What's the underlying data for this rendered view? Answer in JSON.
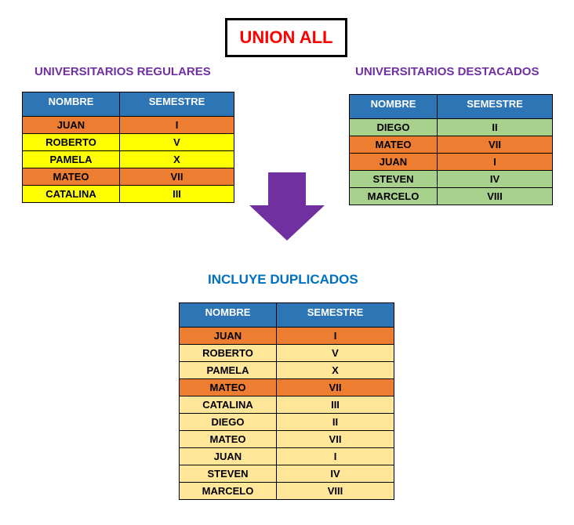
{
  "title": "UNION ALL",
  "colors": {
    "header": "#2e75b6",
    "orange": "#ed7d31",
    "yellow": "#ffff00",
    "green": "#a9d18e",
    "light_orange": "#ffe699",
    "purple": "#7030a0",
    "blue_text": "#0070c0",
    "title_red": "#ff0000"
  },
  "left_table": {
    "heading": "UNIVERSITARIOS REGULARES",
    "columns": [
      "NOMBRE",
      "SEMESTRE"
    ],
    "rows": [
      {
        "nombre": "JUAN",
        "semestre": "I",
        "color": "orange"
      },
      {
        "nombre": "ROBERTO",
        "semestre": "V",
        "color": "yellow"
      },
      {
        "nombre": "PAMELA",
        "semestre": "X",
        "color": "yellow"
      },
      {
        "nombre": "MATEO",
        "semestre": "VII",
        "color": "orange"
      },
      {
        "nombre": "CATALINA",
        "semestre": "III",
        "color": "yellow"
      }
    ]
  },
  "right_table": {
    "heading": "UNIVERSITARIOS DESTACADOS",
    "columns": [
      "NOMBRE",
      "SEMESTRE"
    ],
    "rows": [
      {
        "nombre": "DIEGO",
        "semestre": "II",
        "color": "green"
      },
      {
        "nombre": "MATEO",
        "semestre": "VII",
        "color": "orange"
      },
      {
        "nombre": "JUAN",
        "semestre": "I",
        "color": "orange"
      },
      {
        "nombre": "STEVEN",
        "semestre": "IV",
        "color": "green"
      },
      {
        "nombre": "MARCELO",
        "semestre": "VIII",
        "color": "green"
      }
    ]
  },
  "arrow_icon": "arrow-down-icon",
  "result_table": {
    "heading": "INCLUYE DUPLICADOS",
    "columns": [
      "NOMBRE",
      "SEMESTRE"
    ],
    "rows": [
      {
        "nombre": "JUAN",
        "semestre": "I",
        "color": "orange"
      },
      {
        "nombre": "ROBERTO",
        "semestre": "V",
        "color": "light_orange"
      },
      {
        "nombre": "PAMELA",
        "semestre": "X",
        "color": "light_orange"
      },
      {
        "nombre": "MATEO",
        "semestre": "VII",
        "color": "orange"
      },
      {
        "nombre": "CATALINA",
        "semestre": "III",
        "color": "light_orange"
      },
      {
        "nombre": "DIEGO",
        "semestre": "II",
        "color": "light_orange"
      },
      {
        "nombre": "MATEO",
        "semestre": "VII",
        "color": "light_orange"
      },
      {
        "nombre": "JUAN",
        "semestre": "I",
        "color": "light_orange"
      },
      {
        "nombre": "STEVEN",
        "semestre": "IV",
        "color": "light_orange"
      },
      {
        "nombre": "MARCELO",
        "semestre": "VIII",
        "color": "light_orange"
      }
    ]
  }
}
